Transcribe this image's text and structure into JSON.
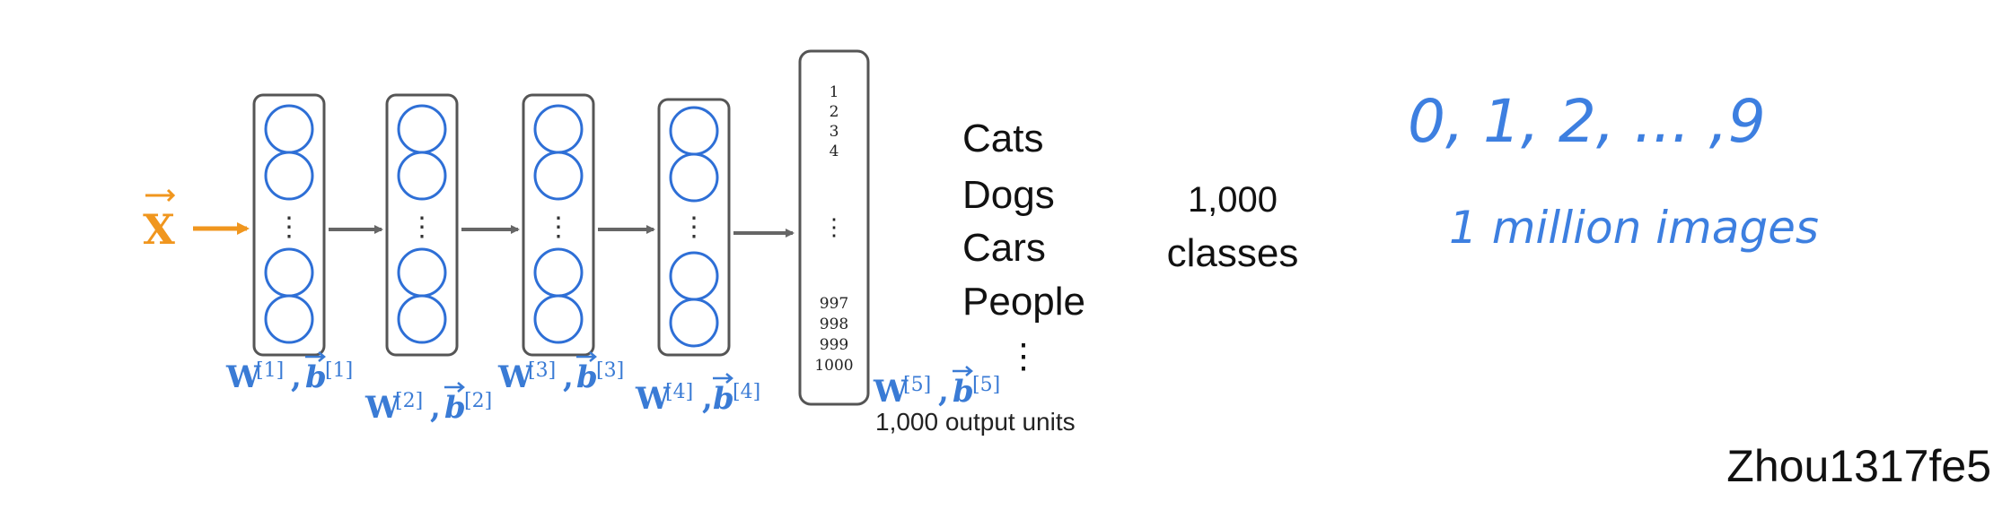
{
  "input": {
    "label": "X",
    "color": "#f0961e"
  },
  "layers": [
    {
      "w": "W",
      "b": "b",
      "idx": "[1]"
    },
    {
      "w": "W",
      "b": "b",
      "idx": "[2]"
    },
    {
      "w": "W",
      "b": "b",
      "idx": "[3]"
    },
    {
      "w": "W",
      "b": "b",
      "idx": "[4]"
    }
  ],
  "output_layer": {
    "w": "W",
    "b": "b",
    "idx": "[5]",
    "top_units": [
      "1",
      "2",
      "3",
      "4"
    ],
    "bottom_units": [
      "997",
      "998",
      "999",
      "1000"
    ],
    "caption": "1,000 output units"
  },
  "categories": [
    "Cats",
    "Dogs",
    "Cars",
    "People"
  ],
  "classes": {
    "count": "1,000",
    "label": "classes"
  },
  "digits_note": "0, 1, 2, ... ,9",
  "images_note": "1 million images",
  "watermark": "Zhou1317fe5",
  "colors": {
    "neuron": "#2e6fd6",
    "label": "#3a7bd5",
    "handwriting": "#3d7fe0",
    "box": "#555555",
    "arrow": "#666666"
  }
}
